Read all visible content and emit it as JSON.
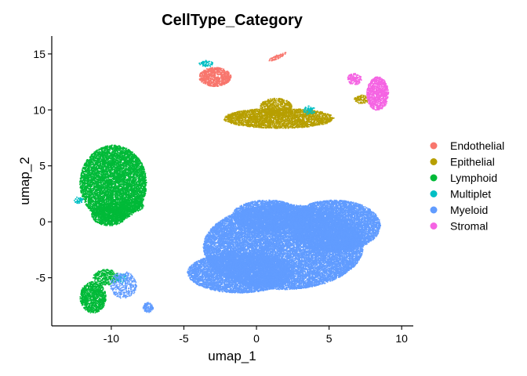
{
  "chart_data": {
    "type": "scatter",
    "title": "CellType_Category",
    "xlabel": "umap_1",
    "ylabel": "umap_2",
    "xlim": [
      -14.1,
      10.8
    ],
    "ylim": [
      -9.3,
      16.6
    ],
    "x_ticks": [
      -10,
      -5,
      0,
      5,
      10
    ],
    "y_ticks": [
      -5,
      0,
      5,
      10,
      15
    ],
    "x_tick_labels": [
      "-10",
      "-5",
      "0",
      "5",
      "10"
    ],
    "y_tick_labels": [
      "-5",
      "0",
      "5",
      "10",
      "15"
    ],
    "grid": false,
    "legend_position": "right",
    "series": [
      {
        "name": "Endothelial",
        "color": "#F8766D",
        "clusters": [
          {
            "shape": "ellipse",
            "cx": -2.9,
            "cy": 13.0,
            "rx": 1.1,
            "ry": 0.85,
            "density": 0.9
          },
          {
            "shape": "ellipse",
            "cx": 1.4,
            "cy": 14.8,
            "rx": 0.65,
            "ry": 0.18,
            "rot": 25,
            "density": 0.6
          }
        ]
      },
      {
        "name": "Epithelial",
        "color": "#B79F00",
        "clusters": [
          {
            "shape": "ellipse",
            "cx": 1.5,
            "cy": 9.3,
            "rx": 3.8,
            "ry": 0.9,
            "density": 0.85
          },
          {
            "shape": "ellipse",
            "cx": 1.3,
            "cy": 10.3,
            "rx": 1.1,
            "ry": 0.8,
            "density": 0.7
          },
          {
            "shape": "ellipse",
            "cx": 7.2,
            "cy": 11.0,
            "rx": 0.5,
            "ry": 0.4,
            "density": 0.5
          }
        ]
      },
      {
        "name": "Lymphoid",
        "color": "#00BA38",
        "clusters": [
          {
            "shape": "ellipse",
            "cx": -9.9,
            "cy": 3.5,
            "rx": 2.3,
            "ry": 3.4,
            "density": 0.9
          },
          {
            "shape": "ellipse",
            "cx": -10.2,
            "cy": 0.7,
            "rx": 1.2,
            "ry": 1.0,
            "density": 0.8
          },
          {
            "shape": "ellipse",
            "cx": -8.6,
            "cy": 1.5,
            "rx": 0.8,
            "ry": 0.6,
            "density": 0.6
          },
          {
            "shape": "ellipse",
            "cx": -11.3,
            "cy": -6.7,
            "rx": 0.9,
            "ry": 1.4,
            "density": 0.9
          },
          {
            "shape": "ellipse",
            "cx": -10.4,
            "cy": -4.9,
            "rx": 0.9,
            "ry": 0.7,
            "density": 0.5
          }
        ]
      },
      {
        "name": "Multiplet",
        "color": "#00BFC4",
        "clusters": [
          {
            "shape": "ellipse",
            "cx": -12.3,
            "cy": 2.0,
            "rx": 0.3,
            "ry": 0.3,
            "density": 0.5
          },
          {
            "shape": "ellipse",
            "cx": -3.5,
            "cy": 14.2,
            "rx": 0.5,
            "ry": 0.3,
            "density": 0.4
          },
          {
            "shape": "ellipse",
            "cx": 3.6,
            "cy": 10.0,
            "rx": 0.4,
            "ry": 0.4,
            "density": 0.4
          },
          {
            "shape": "ellipse",
            "cx": -9.3,
            "cy": -5.0,
            "rx": 0.4,
            "ry": 0.4,
            "density": 0.4
          }
        ]
      },
      {
        "name": "Myeloid",
        "color": "#619CFF",
        "clusters": [
          {
            "shape": "ellipse",
            "cx": 1.8,
            "cy": -2.2,
            "rx": 5.5,
            "ry": 3.8,
            "density": 0.97
          },
          {
            "shape": "ellipse",
            "cx": 5.3,
            "cy": -0.3,
            "rx": 3.2,
            "ry": 2.3,
            "density": 0.95
          },
          {
            "shape": "ellipse",
            "cx": -1.2,
            "cy": -4.5,
            "rx": 3.6,
            "ry": 1.8,
            "density": 0.95
          },
          {
            "shape": "ellipse",
            "cx": 0.7,
            "cy": 0.6,
            "rx": 2.4,
            "ry": 1.4,
            "density": 0.85
          },
          {
            "shape": "ellipse",
            "cx": -9.2,
            "cy": -5.6,
            "rx": 0.9,
            "ry": 1.2,
            "density": 0.35
          },
          {
            "shape": "ellipse",
            "cx": -7.5,
            "cy": -7.6,
            "rx": 0.35,
            "ry": 0.45,
            "density": 0.8
          }
        ]
      },
      {
        "name": "Stromal",
        "color": "#F564E3",
        "clusters": [
          {
            "shape": "ellipse",
            "cx": 8.3,
            "cy": 11.5,
            "rx": 0.75,
            "ry": 1.5,
            "density": 0.9
          },
          {
            "shape": "ellipse",
            "cx": 6.7,
            "cy": 12.8,
            "rx": 0.5,
            "ry": 0.5,
            "density": 0.6
          }
        ]
      }
    ]
  }
}
